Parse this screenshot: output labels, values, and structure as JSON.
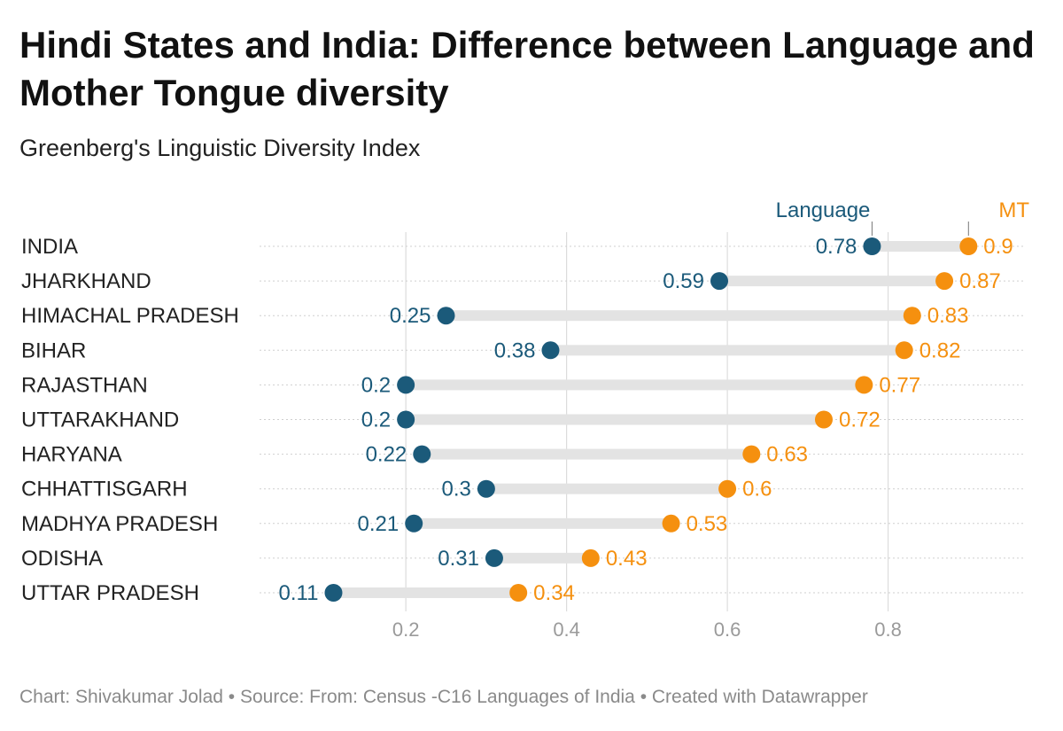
{
  "title": "Hindi States and India: Difference between Language and Mother Tongue diversity",
  "subtitle": "Greenberg's Linguistic Diversity Index",
  "footer": "Chart: Shivakumar Jolad • Source: From: Census -C16 Languages of India • Created with Datawrapper",
  "colors": {
    "language": "#1b5a7a",
    "mt": "#f5900f",
    "range": "#e3e3e3",
    "grid": "#dcdcdc"
  },
  "chart_data": {
    "type": "dot-range",
    "xlim": [
      0.018,
      0.968
    ],
    "ticks": [
      0.2,
      0.4,
      0.6,
      0.8
    ],
    "tick_labels": [
      "0.2",
      "0.4",
      "0.6",
      "0.8"
    ],
    "legend": {
      "language": "Language",
      "mt": "MT"
    },
    "series": [
      {
        "name": "Language",
        "color": "#1b5a7a"
      },
      {
        "name": "MT",
        "color": "#f5900f"
      }
    ],
    "rows": [
      {
        "label": "INDIA",
        "language": 0.78,
        "mt": 0.9,
        "language_label": "0.78",
        "mt_label": "0.9"
      },
      {
        "label": "JHARKHAND",
        "language": 0.59,
        "mt": 0.87,
        "language_label": "0.59",
        "mt_label": "0.87"
      },
      {
        "label": "HIMACHAL PRADESH",
        "language": 0.25,
        "mt": 0.83,
        "language_label": "0.25",
        "mt_label": "0.83"
      },
      {
        "label": "BIHAR",
        "language": 0.38,
        "mt": 0.82,
        "language_label": "0.38",
        "mt_label": "0.82"
      },
      {
        "label": "RAJASTHAN",
        "language": 0.2,
        "mt": 0.77,
        "language_label": "0.2",
        "mt_label": "0.77"
      },
      {
        "label": "UTTARAKHAND",
        "language": 0.2,
        "mt": 0.72,
        "language_label": "0.2",
        "mt_label": "0.72"
      },
      {
        "label": "HARYANA",
        "language": 0.22,
        "mt": 0.63,
        "language_label": "0.22",
        "mt_label": "0.63"
      },
      {
        "label": "CHHATTISGARH",
        "language": 0.3,
        "mt": 0.6,
        "language_label": "0.3",
        "mt_label": "0.6"
      },
      {
        "label": "MADHYA PRADESH",
        "language": 0.21,
        "mt": 0.53,
        "language_label": "0.21",
        "mt_label": "0.53"
      },
      {
        "label": "ODISHA",
        "language": 0.31,
        "mt": 0.43,
        "language_label": "0.31",
        "mt_label": "0.43"
      },
      {
        "label": "UTTAR PRADESH",
        "language": 0.11,
        "mt": 0.34,
        "language_label": "0.11",
        "mt_label": "0.34"
      }
    ]
  }
}
